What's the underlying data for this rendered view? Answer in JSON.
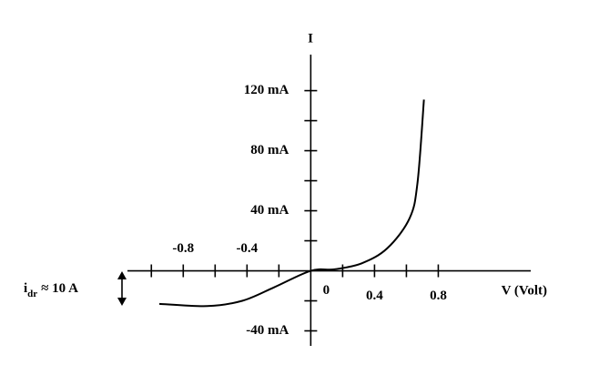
{
  "chart_data": {
    "type": "line",
    "x_label": "V (Volt)",
    "y_label": "I",
    "annotation": {
      "main": "i",
      "sub": "dr",
      "rest": "≈ 10 A"
    },
    "xlim": [
      -1.15,
      1.38
    ],
    "ylim": [
      -50,
      144
    ],
    "xticks": [
      -0.8,
      -0.4,
      0,
      0.4,
      0.8
    ],
    "xminor": [
      -1.0,
      -0.6,
      -0.2,
      0.2,
      0.6
    ],
    "yticks": [
      {
        "value": 120,
        "label": "120 mA"
      },
      {
        "value": 80,
        "label": "80 mA"
      },
      {
        "value": 40,
        "label": "40 mA"
      },
      {
        "value": -40,
        "label": "-40 mA"
      }
    ],
    "yminor": [
      100,
      60,
      20,
      -20
    ],
    "color": "#000000",
    "x": [
      -0.95,
      -0.65,
      -0.43,
      -0.23,
      0,
      0.15,
      0.32,
      0.48,
      0.62,
      0.67,
      0.71
    ],
    "values": [
      -22,
      -23.5,
      -20,
      -11,
      0,
      1,
      5,
      15,
      35,
      59,
      114
    ]
  }
}
